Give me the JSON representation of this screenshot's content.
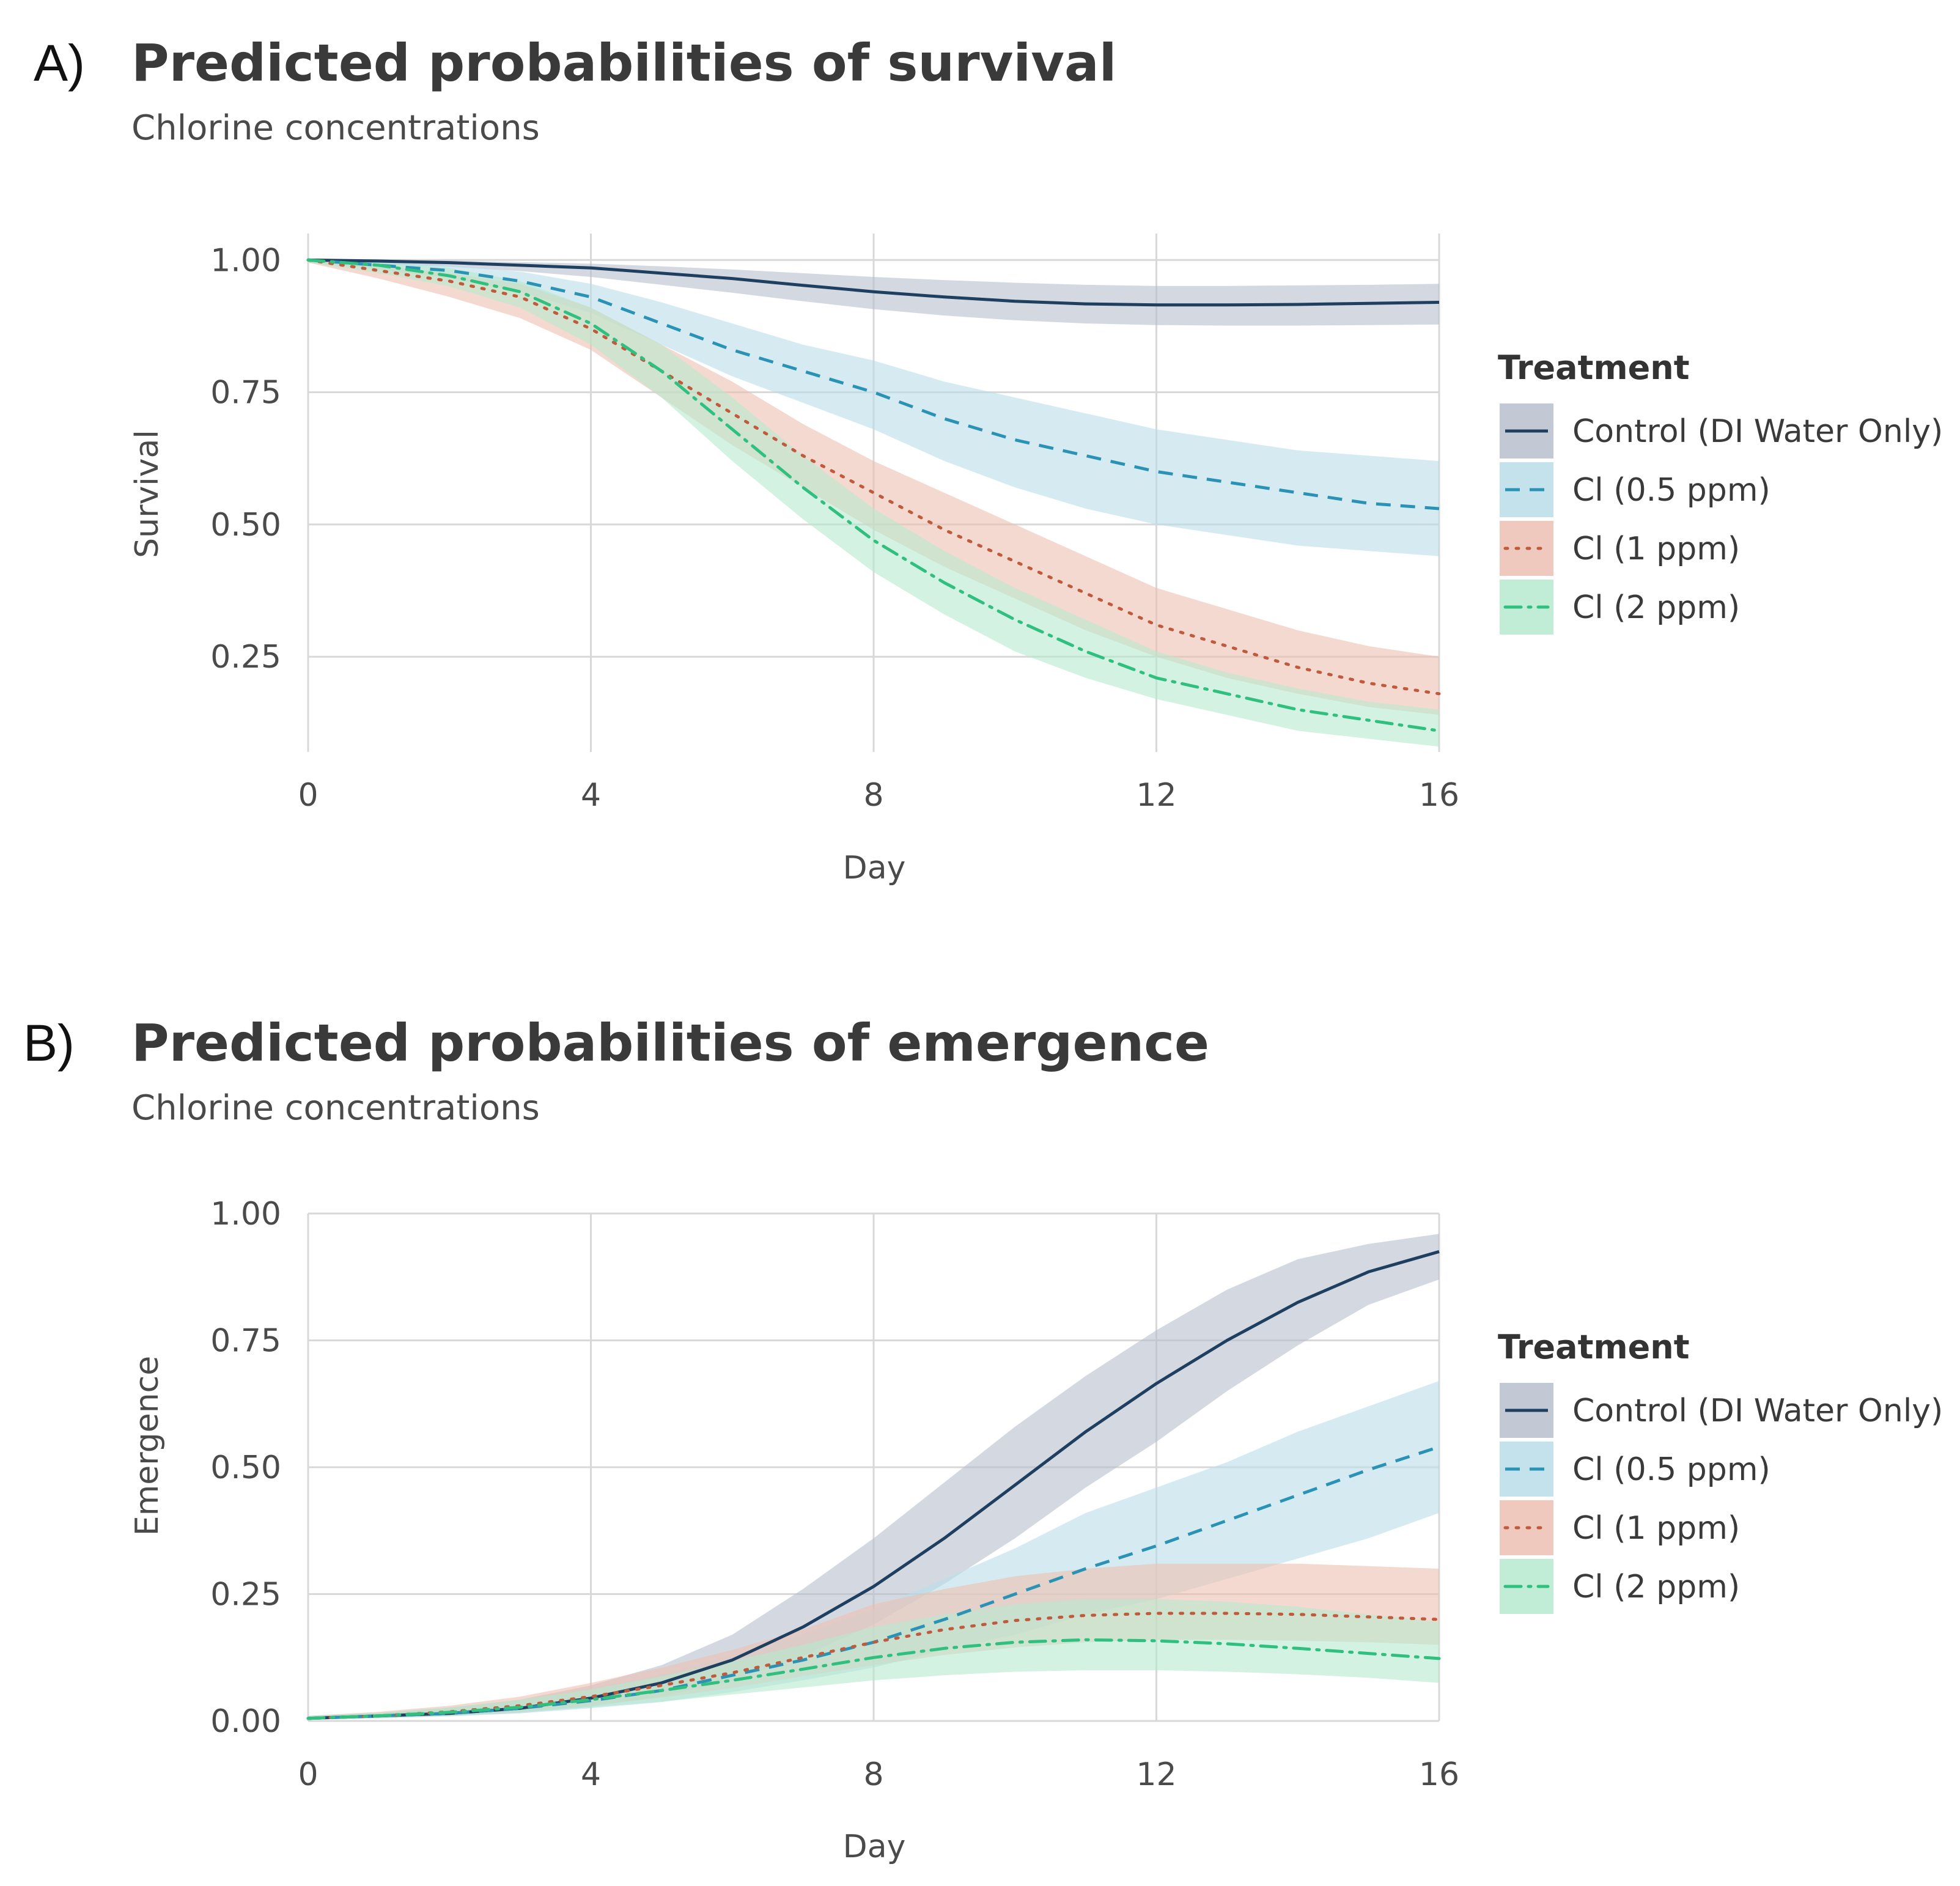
{
  "legend": {
    "title": "Treatment",
    "items": [
      {
        "label": "Control (DI Water Only)",
        "color": "#1f3f60",
        "band": "#b7bfcd",
        "dash": "solid"
      },
      {
        "label": "Cl (0.5 ppm)",
        "color": "#2a93b5",
        "band": "#b9dde8",
        "dash": "dashed"
      },
      {
        "label": "Cl (1 ppm)",
        "color": "#c05a3c",
        "band": "#ecbfb1",
        "dash": "dotted"
      },
      {
        "label": "Cl (2 ppm)",
        "color": "#2fbf7f",
        "band": "#b6e9cf",
        "dash": "dotdash"
      }
    ]
  },
  "chart_data": [
    {
      "panel": "A)",
      "type": "line",
      "title": "Predicted probabilities of survival",
      "subtitle": "Chlorine concentrations",
      "xlabel": "Day",
      "ylabel": "Survival",
      "xlim": [
        0,
        16
      ],
      "ylim": [
        0.07,
        1.05
      ],
      "x_ticks": [
        0,
        4,
        8,
        12,
        16
      ],
      "y_ticks": [
        1.0,
        0.75,
        0.5,
        0.25
      ],
      "y_tick_labels": [
        "1.00",
        "0.75",
        "0.50",
        "0.25"
      ],
      "grid": true,
      "legend_position": "right",
      "x": [
        0,
        1,
        2,
        3,
        4,
        5,
        6,
        7,
        8,
        9,
        10,
        11,
        12,
        13,
        14,
        15,
        16
      ],
      "series": [
        {
          "name": "Control (DI Water Only)",
          "values": [
            1.0,
            0.998,
            0.995,
            0.99,
            0.985,
            0.975,
            0.965,
            0.952,
            0.94,
            0.93,
            0.922,
            0.917,
            0.915,
            0.915,
            0.916,
            0.918,
            0.92
          ],
          "lower": [
            0.995,
            0.992,
            0.987,
            0.979,
            0.968,
            0.953,
            0.938,
            0.922,
            0.907,
            0.895,
            0.886,
            0.88,
            0.877,
            0.876,
            0.876,
            0.877,
            0.878
          ],
          "upper": [
            1.0,
            1.0,
            0.999,
            0.996,
            0.993,
            0.988,
            0.982,
            0.975,
            0.968,
            0.962,
            0.957,
            0.953,
            0.951,
            0.951,
            0.952,
            0.953,
            0.955
          ]
        },
        {
          "name": "Cl (0.5 ppm)",
          "values": [
            1.0,
            0.99,
            0.98,
            0.96,
            0.93,
            0.88,
            0.83,
            0.79,
            0.75,
            0.7,
            0.66,
            0.63,
            0.6,
            0.58,
            0.56,
            0.54,
            0.53
          ],
          "lower": [
            0.995,
            0.982,
            0.966,
            0.94,
            0.9,
            0.84,
            0.78,
            0.73,
            0.68,
            0.62,
            0.57,
            0.53,
            0.5,
            0.48,
            0.46,
            0.45,
            0.44
          ],
          "upper": [
            1.0,
            0.996,
            0.99,
            0.978,
            0.955,
            0.92,
            0.88,
            0.84,
            0.81,
            0.77,
            0.74,
            0.71,
            0.68,
            0.66,
            0.64,
            0.63,
            0.62
          ]
        },
        {
          "name": "Cl (1 ppm)",
          "values": [
            1.0,
            0.98,
            0.96,
            0.93,
            0.87,
            0.79,
            0.71,
            0.63,
            0.56,
            0.49,
            0.43,
            0.37,
            0.31,
            0.27,
            0.23,
            0.2,
            0.18
          ],
          "lower": [
            0.995,
            0.965,
            0.93,
            0.89,
            0.83,
            0.74,
            0.65,
            0.57,
            0.49,
            0.42,
            0.36,
            0.3,
            0.25,
            0.21,
            0.18,
            0.155,
            0.14
          ],
          "upper": [
            1.0,
            0.99,
            0.975,
            0.955,
            0.91,
            0.84,
            0.77,
            0.69,
            0.62,
            0.56,
            0.5,
            0.44,
            0.38,
            0.34,
            0.3,
            0.27,
            0.25
          ]
        },
        {
          "name": "Cl (2 ppm)",
          "values": [
            1.0,
            0.99,
            0.97,
            0.94,
            0.88,
            0.79,
            0.68,
            0.57,
            0.47,
            0.39,
            0.32,
            0.26,
            0.21,
            0.18,
            0.15,
            0.13,
            0.11
          ],
          "lower": [
            0.995,
            0.975,
            0.95,
            0.91,
            0.84,
            0.74,
            0.62,
            0.51,
            0.41,
            0.33,
            0.26,
            0.21,
            0.17,
            0.14,
            0.11,
            0.095,
            0.08
          ],
          "upper": [
            1.0,
            0.995,
            0.985,
            0.96,
            0.91,
            0.84,
            0.74,
            0.63,
            0.53,
            0.45,
            0.38,
            0.32,
            0.26,
            0.22,
            0.19,
            0.165,
            0.15
          ]
        }
      ]
    },
    {
      "panel": "B)",
      "type": "line",
      "title": "Predicted probabilities of emergence",
      "subtitle": "Chlorine concentrations",
      "xlabel": "Day",
      "ylabel": "Emergence",
      "xlim": [
        0,
        16
      ],
      "ylim": [
        0,
        1.0
      ],
      "x_ticks": [
        0,
        4,
        8,
        12,
        16
      ],
      "y_ticks": [
        1.0,
        0.75,
        0.5,
        0.25,
        0.0
      ],
      "y_tick_labels": [
        "1.00",
        "0.75",
        "0.50",
        "0.25",
        "0.00"
      ],
      "grid": true,
      "legend_position": "right",
      "x": [
        0,
        1,
        2,
        3,
        4,
        5,
        6,
        7,
        8,
        9,
        10,
        11,
        12,
        13,
        14,
        15,
        16
      ],
      "series": [
        {
          "name": "Control (DI Water Only)",
          "values": [
            0.005,
            0.01,
            0.015,
            0.025,
            0.045,
            0.075,
            0.12,
            0.185,
            0.265,
            0.36,
            0.465,
            0.57,
            0.665,
            0.75,
            0.825,
            0.885,
            0.925
          ],
          "lower": [
            0.003,
            0.006,
            0.01,
            0.016,
            0.028,
            0.048,
            0.08,
            0.128,
            0.19,
            0.27,
            0.36,
            0.46,
            0.55,
            0.65,
            0.74,
            0.82,
            0.87
          ],
          "upper": [
            0.01,
            0.016,
            0.026,
            0.042,
            0.07,
            0.11,
            0.17,
            0.26,
            0.36,
            0.47,
            0.58,
            0.68,
            0.77,
            0.85,
            0.91,
            0.94,
            0.96
          ]
        },
        {
          "name": "Cl (0.5 ppm)",
          "values": [
            0.005,
            0.01,
            0.015,
            0.025,
            0.04,
            0.06,
            0.09,
            0.12,
            0.155,
            0.2,
            0.25,
            0.3,
            0.345,
            0.395,
            0.445,
            0.495,
            0.54
          ],
          "lower": [
            0.003,
            0.005,
            0.009,
            0.015,
            0.025,
            0.037,
            0.057,
            0.08,
            0.105,
            0.14,
            0.17,
            0.21,
            0.24,
            0.28,
            0.32,
            0.36,
            0.41
          ],
          "upper": [
            0.01,
            0.016,
            0.025,
            0.04,
            0.065,
            0.09,
            0.13,
            0.17,
            0.22,
            0.28,
            0.34,
            0.41,
            0.46,
            0.51,
            0.57,
            0.62,
            0.67
          ]
        },
        {
          "name": "Cl (1 ppm)",
          "values": [
            0.005,
            0.01,
            0.018,
            0.03,
            0.048,
            0.07,
            0.095,
            0.125,
            0.155,
            0.18,
            0.198,
            0.208,
            0.212,
            0.212,
            0.21,
            0.205,
            0.2
          ],
          "lower": [
            0.003,
            0.006,
            0.011,
            0.019,
            0.031,
            0.046,
            0.065,
            0.088,
            0.11,
            0.13,
            0.145,
            0.155,
            0.16,
            0.16,
            0.158,
            0.155,
            0.15
          ],
          "upper": [
            0.01,
            0.018,
            0.03,
            0.048,
            0.075,
            0.105,
            0.14,
            0.18,
            0.23,
            0.26,
            0.285,
            0.3,
            0.31,
            0.31,
            0.31,
            0.305,
            0.3
          ]
        },
        {
          "name": "Cl (2 ppm)",
          "values": [
            0.005,
            0.01,
            0.017,
            0.027,
            0.042,
            0.06,
            0.08,
            0.102,
            0.125,
            0.143,
            0.155,
            0.16,
            0.158,
            0.152,
            0.143,
            0.133,
            0.123
          ],
          "lower": [
            0.003,
            0.006,
            0.01,
            0.017,
            0.027,
            0.038,
            0.052,
            0.066,
            0.08,
            0.09,
            0.097,
            0.1,
            0.1,
            0.097,
            0.092,
            0.085,
            0.075
          ],
          "upper": [
            0.01,
            0.016,
            0.027,
            0.042,
            0.062,
            0.088,
            0.118,
            0.15,
            0.185,
            0.21,
            0.23,
            0.24,
            0.24,
            0.235,
            0.225,
            0.21,
            0.195
          ]
        }
      ]
    }
  ]
}
